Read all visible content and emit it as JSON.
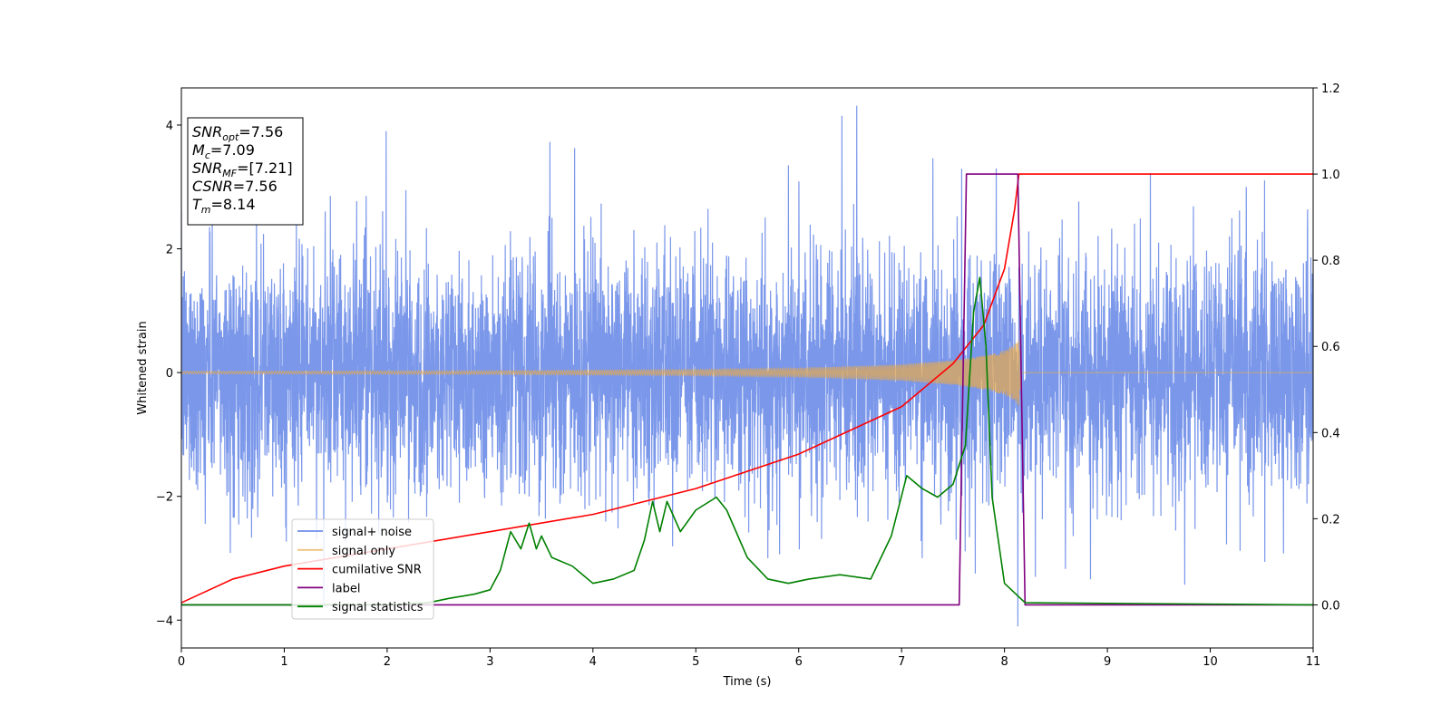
{
  "chart_data": {
    "type": "line",
    "title": "",
    "xlabel": "Time (s)",
    "ylabel": "Whitened strain",
    "xlim": [
      0,
      11
    ],
    "ylim": [
      -4.45,
      4.6
    ],
    "y2lim": [
      -0.1,
      1.2
    ],
    "xticks": [
      "0",
      "1",
      "2",
      "3",
      "4",
      "5",
      "6",
      "7",
      "8",
      "9",
      "10",
      "11"
    ],
    "yticks": [
      "−4",
      "−2",
      "0",
      "2",
      "4"
    ],
    "y2ticks": [
      "0.0",
      "0.2",
      "0.4",
      "0.6",
      "0.8",
      "1.0",
      "1.2"
    ],
    "grid": false,
    "legend_position": "lower-left",
    "annotation": {
      "lines": [
        {
          "base": "SNR",
          "sub": "opt",
          "rest": "=7.56"
        },
        {
          "base": "M",
          "sub": "c",
          "rest": "=7.09"
        },
        {
          "base": "SNR",
          "sub": "MF",
          "rest": "=[7.21]"
        },
        {
          "base": "CSNR",
          "sub": "",
          "rest": "=7.56"
        },
        {
          "base": "T",
          "sub": "m",
          "rest": "=8.14"
        }
      ]
    },
    "series": [
      {
        "name": "signal+ noise",
        "color": "#6f8ee8",
        "axis": "left",
        "noise_scale": 0.95,
        "spikes": [
          [
            1.99,
            3.9
          ],
          [
            6.42,
            4.15
          ],
          [
            5.9,
            3.35
          ],
          [
            7.92,
            3.3
          ],
          [
            10.35,
            3.0
          ],
          [
            0.3,
            2.8
          ],
          [
            8.13,
            -4.1
          ],
          [
            7.2,
            -3.0
          ],
          [
            8.3,
            -3.3
          ],
          [
            5.7,
            -3.0
          ]
        ]
      },
      {
        "name": "signal only",
        "color": "#e8a94a",
        "axis": "left",
        "amplitude_points": [
          [
            0,
            0.02
          ],
          [
            3,
            0.03
          ],
          [
            5,
            0.05
          ],
          [
            6,
            0.07
          ],
          [
            7,
            0.13
          ],
          [
            7.5,
            0.2
          ],
          [
            7.8,
            0.27
          ],
          [
            8.0,
            0.36
          ],
          [
            8.1,
            0.46
          ],
          [
            8.14,
            0.55
          ],
          [
            8.16,
            0.0
          ],
          [
            11,
            0.0
          ]
        ]
      },
      {
        "name": "cumilative SNR",
        "color": "#ff0000",
        "axis": "right",
        "points": [
          [
            0,
            0.005
          ],
          [
            0.5,
            0.06
          ],
          [
            1.0,
            0.09
          ],
          [
            2.0,
            0.13
          ],
          [
            3.0,
            0.17
          ],
          [
            4.0,
            0.21
          ],
          [
            5.0,
            0.27
          ],
          [
            6.0,
            0.35
          ],
          [
            7.0,
            0.46
          ],
          [
            7.5,
            0.56
          ],
          [
            7.8,
            0.65
          ],
          [
            8.0,
            0.78
          ],
          [
            8.1,
            0.92
          ],
          [
            8.14,
            1.0
          ],
          [
            11.0,
            1.0
          ]
        ]
      },
      {
        "name": "label",
        "color": "#800080",
        "axis": "right",
        "points": [
          [
            0,
            0.0
          ],
          [
            7.56,
            0.0
          ],
          [
            7.63,
            1.0
          ],
          [
            8.13,
            1.0
          ],
          [
            8.2,
            0.0
          ],
          [
            11.0,
            0.0
          ]
        ]
      },
      {
        "name": "signal statistics",
        "color": "#008000",
        "axis": "right",
        "points": [
          [
            0,
            0.0
          ],
          [
            1.0,
            0.0
          ],
          [
            2.0,
            0.0
          ],
          [
            2.4,
            0.005
          ],
          [
            2.6,
            0.015
          ],
          [
            2.85,
            0.025
          ],
          [
            3.0,
            0.035
          ],
          [
            3.1,
            0.08
          ],
          [
            3.2,
            0.17
          ],
          [
            3.3,
            0.13
          ],
          [
            3.38,
            0.19
          ],
          [
            3.45,
            0.13
          ],
          [
            3.5,
            0.16
          ],
          [
            3.6,
            0.11
          ],
          [
            3.8,
            0.09
          ],
          [
            4.0,
            0.05
          ],
          [
            4.2,
            0.06
          ],
          [
            4.4,
            0.08
          ],
          [
            4.5,
            0.15
          ],
          [
            4.58,
            0.24
          ],
          [
            4.65,
            0.17
          ],
          [
            4.72,
            0.24
          ],
          [
            4.85,
            0.17
          ],
          [
            5.0,
            0.22
          ],
          [
            5.2,
            0.25
          ],
          [
            5.3,
            0.22
          ],
          [
            5.5,
            0.11
          ],
          [
            5.7,
            0.06
          ],
          [
            5.9,
            0.05
          ],
          [
            6.1,
            0.06
          ],
          [
            6.4,
            0.07
          ],
          [
            6.7,
            0.06
          ],
          [
            6.9,
            0.16
          ],
          [
            7.05,
            0.3
          ],
          [
            7.2,
            0.27
          ],
          [
            7.35,
            0.25
          ],
          [
            7.5,
            0.28
          ],
          [
            7.62,
            0.37
          ],
          [
            7.7,
            0.68
          ],
          [
            7.76,
            0.76
          ],
          [
            7.82,
            0.6
          ],
          [
            7.88,
            0.25
          ],
          [
            8.0,
            0.05
          ],
          [
            8.2,
            0.005
          ],
          [
            11.0,
            0.0
          ]
        ]
      }
    ]
  }
}
